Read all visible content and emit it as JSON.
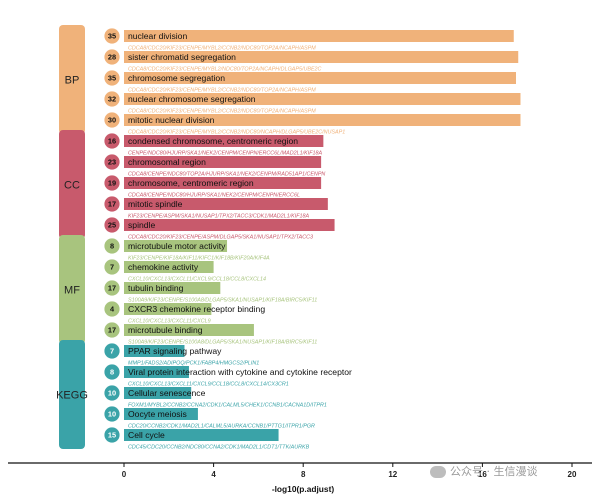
{
  "chart_data": {
    "type": "bar",
    "orientation": "horizontal",
    "xlabel": "-log10(p.adjust)",
    "xticks": [
      0,
      4,
      8,
      12,
      16,
      20
    ],
    "xlim": [
      -5,
      21
    ],
    "groups": [
      {
        "name": "BP",
        "color": "#f0b27a",
        "terms": [
          {
            "term": "nuclear division",
            "count": 35,
            "value": 17.4,
            "genes": "CDCA8/CDC20/KIF23/CENPE/MYBL2/CCNB2/NDC80/TOP2A/NCAPH/ASPM"
          },
          {
            "term": "sister chromatid segregation",
            "count": 28,
            "value": 17.6,
            "genes": "CDCA8/CDC20/KIF23/CENPE/MYBL2/NDC80/TOP2A/NCAPH/DLGAP5/UBE2C"
          },
          {
            "term": "chromosome segregation",
            "count": 35,
            "value": 17.5,
            "genes": "CDCA8/CDC20/KIF23/CENPE/MYBL2/CCNB2/NDC80/TOP2A/NCAPH/ASPM"
          },
          {
            "term": "nuclear chromosome segregation",
            "count": 32,
            "value": 17.7,
            "genes": "CDCA8/CDC20/KIF23/CENPE/MYBL2/CCNB2/NDC80/TOP2A/NCAPH/ASPM"
          },
          {
            "term": "mitotic nuclear division",
            "count": 30,
            "value": 17.7,
            "genes": "CDCA8/CDC20/KIF23/CENPE/MYBL2/CCNB2/NDC80/NCAPH/DLGAP5/UBE2C/NUSAP1"
          }
        ]
      },
      {
        "name": "CC",
        "color": "#c85a6c",
        "terms": [
          {
            "term": "condensed chromosome, centromeric region",
            "count": 16,
            "value": 8.9,
            "genes": "CENPE/NDC80/HJURP/SKA1/NEK2/CENPM/CENPN/ERCC6L/MAD2L1/KIF18A"
          },
          {
            "term": "chromosomal region",
            "count": 23,
            "value": 8.8,
            "genes": "CDCA8/CENPE/NDC80/TOP2A/HJURP/SKA1/NEK2/CENPM/RAD51AP1/CENPN"
          },
          {
            "term": "chromosome, centromeric region",
            "count": 19,
            "value": 8.8,
            "genes": "CDCA8/CENPE/NDC80/HJURP/SKA1/NEK2/CENPM/CENPN/ERCC6L"
          },
          {
            "term": "mitotic spindle",
            "count": 17,
            "value": 9.1,
            "genes": "KIF23/CENPE/ASPM/SKA1/NUSAP1/TPX2/TACC3/CDK1/MAD2L1/KIF18A"
          },
          {
            "term": "spindle",
            "count": 25,
            "value": 9.4,
            "genes": "CDCA8/CDC20/KIF23/CENPE/ASPM/DLGAP5/SKA1/NUSAP1/TPX2/TACC3"
          }
        ]
      },
      {
        "name": "MF",
        "color": "#a8c47e",
        "terms": [
          {
            "term": "microtubule motor activity",
            "count": 8,
            "value": 4.6,
            "genes": "KIF23/CENPE/KIF18A/KIF11/KIFC1/KIF18B/KIF20A/KIF4A"
          },
          {
            "term": "chemokine activity",
            "count": 7,
            "value": 4.0,
            "genes": "CXCL10/CXCL13/CXCL11/CXCL9/CCL18/CCL8/CXCL14"
          },
          {
            "term": "tubulin binding",
            "count": 17,
            "value": 4.3,
            "genes": "S100A9/KIF23/CENPE/S100A8/DLGAP5/SKA1/NUSAP1/KIF18A/BIRC5/KIF11"
          },
          {
            "term": "CXCR3 chemokine receptor binding",
            "count": 4,
            "value": 3.9,
            "genes": "CXCL10/CXCL13/CXCL11/CXCL9"
          },
          {
            "term": "microtubule binding",
            "count": 17,
            "value": 5.8,
            "genes": "S100A9/KIF23/CENPE/S100A8/DLGAP5/SKA1/NUSAP1/KIF18A/BIRC5/KIF11"
          }
        ]
      },
      {
        "name": "KEGG",
        "color": "#3aa3a8",
        "terms": [
          {
            "term": "PPAR signaling pathway",
            "count": 7,
            "value": 2.7,
            "genes": "MMP1/FADS2/ADIPOQ/PCK1/FABP4/HMGCS2/PLIN1"
          },
          {
            "term": "Viral protein interaction with cytokine and cytokine receptor",
            "count": 8,
            "value": 2.9,
            "genes": "CXCL10/CXCL13/CXCL11/CXCL9/CCL18/CCL8/CXCL14/CX3CR1"
          },
          {
            "term": "Cellular senescence",
            "count": 10,
            "value": 3.0,
            "genes": "FOXM1/MYBL2/CCNB2/CCNA2/CDK1/CALML5/CHEK1/CCNB1/CACNA1D/ITPR1"
          },
          {
            "term": "Oocyte meiosis",
            "count": 10,
            "value": 3.3,
            "genes": "CDC20/CCNB2/CDK1/MAD2L1/CALML5/AURKA/CCNB1/PTTG1/ITPR1/PGR"
          },
          {
            "term": "Cell cycle",
            "count": 15,
            "value": 6.9,
            "genes": "CDC45/CDC20/CCNB2/NDC80/CCNA2/CDK1/MAD2L1/CDT1/TTK/AURKB"
          }
        ]
      }
    ]
  },
  "watermark": "公众号 · 生信漫谈",
  "watermark_icon": "wechat-icon"
}
